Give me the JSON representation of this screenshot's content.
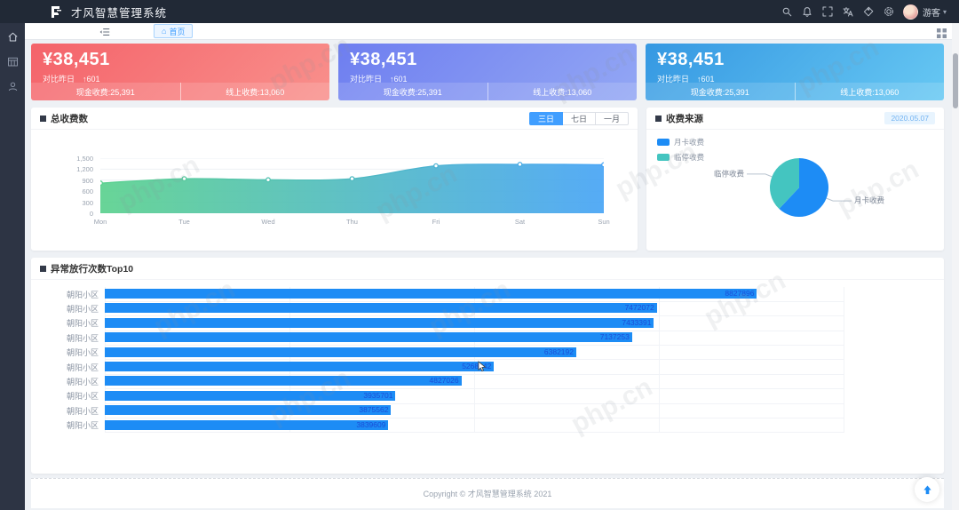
{
  "app": {
    "title": "才风智慧管理系统"
  },
  "header": {
    "icons": [
      "search",
      "notification",
      "fullscreen",
      "translate",
      "theme",
      "settings"
    ],
    "user": {
      "name": "游客"
    }
  },
  "sidebar": {
    "items": [
      {
        "icon": "home"
      },
      {
        "icon": "modules"
      },
      {
        "icon": "user"
      }
    ]
  },
  "tabbar": {
    "active_tab": "首页"
  },
  "stat_cards": [
    {
      "amount": "¥38,451",
      "compare_label": "对比昨日",
      "compare_delta": "↑601",
      "cash": "现金收费:25,391",
      "online": "线上收费:13,060",
      "gradient": [
        "#f4636a",
        "#f9908c"
      ]
    },
    {
      "amount": "¥38,451",
      "compare_label": "对比昨日",
      "compare_delta": "↑601",
      "cash": "现金收费:25,391",
      "online": "线上收费:13,060",
      "gradient": [
        "#6e7ef0",
        "#93a7f4"
      ]
    },
    {
      "amount": "¥38,451",
      "compare_label": "对比昨日",
      "compare_delta": "↑601",
      "cash": "现金收费:25,391",
      "online": "线上收费:13,060",
      "gradient": [
        "#3598e2",
        "#67c8f3"
      ]
    }
  ],
  "chart_data": [
    {
      "type": "area",
      "title": "总收费数",
      "tabs": [
        "三日",
        "七日",
        "一月"
      ],
      "active_tab": "三日",
      "x": [
        "Mon",
        "Tue",
        "Wed",
        "Thu",
        "Fri",
        "Sat",
        "Sun"
      ],
      "values": [
        820,
        940,
        910,
        940,
        1290,
        1330,
        1320
      ],
      "ylim": [
        0,
        1500
      ],
      "yticks": [
        "0",
        "300",
        "600",
        "900",
        "1,200",
        "1,500"
      ],
      "gradient": [
        "#5bd18e",
        "#47a4f5"
      ],
      "legend_position": "none",
      "grid": true
    },
    {
      "type": "pie",
      "title": "收费来源",
      "date_badge": "2020.05.07",
      "legend_position": "top-left",
      "slices": [
        {
          "label": "月卡收费",
          "pct": 62,
          "color": "#1d8cf5"
        },
        {
          "label": "临停收费",
          "pct": 38,
          "color": "#44c5c0"
        }
      ]
    },
    {
      "type": "bar",
      "title": "异常放行次数Top10",
      "orientation": "horizontal",
      "categories": [
        "朝阳小区",
        "朝阳小区",
        "朝阳小区",
        "朝阳小区",
        "朝阳小区",
        "朝阳小区",
        "朝阳小区",
        "朝阳小区",
        "朝阳小区",
        "朝阳小区"
      ],
      "values": [
        8827896,
        7472072,
        7433391,
        7137253,
        6382192,
        5268142,
        4827026,
        3935701,
        3875562,
        3839609
      ],
      "xlim": [
        0,
        10000000
      ],
      "bar_color": "#1d8cf5",
      "value_color": "#1b4ed8",
      "grid": true
    }
  ],
  "footer": {
    "copyright": "Copyright © 才风智慧管理系统 2021"
  },
  "watermark": {
    "text": "php.cn"
  }
}
